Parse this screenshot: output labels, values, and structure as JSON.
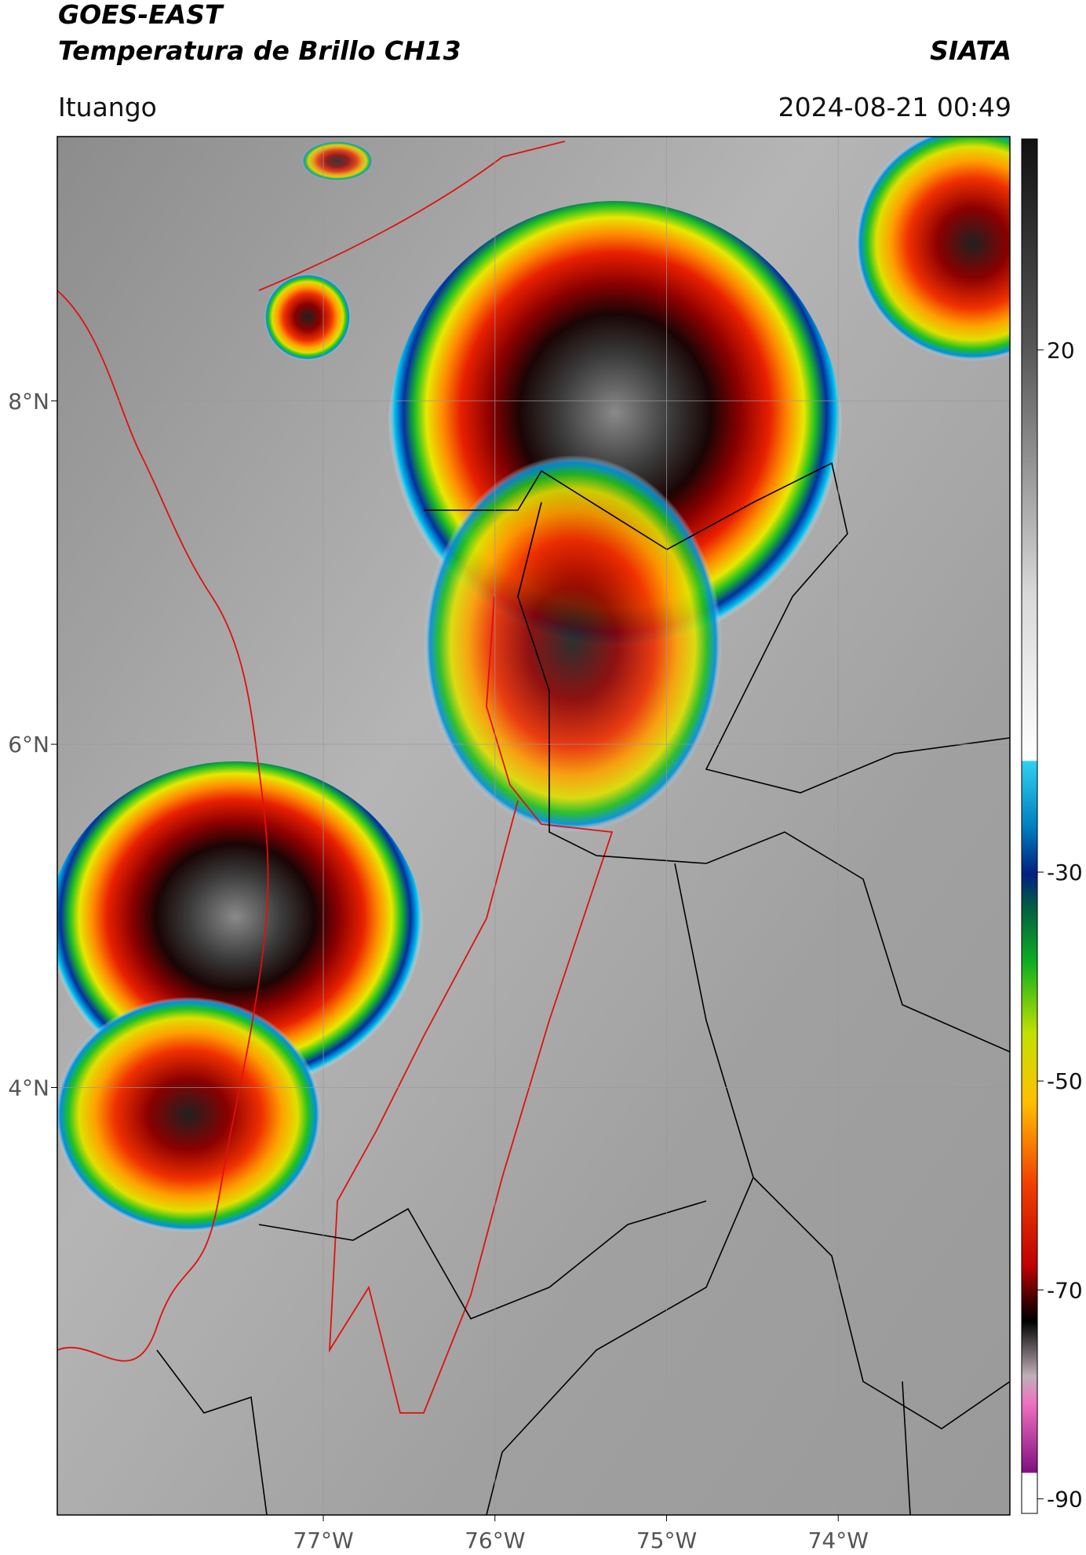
{
  "header": {
    "title": "GOES-EAST",
    "subtitle": "Temperatura de Brillo CH13",
    "brand": "SIATA",
    "location": "Ituango",
    "datetime": "2024-08-21 00:49"
  },
  "chart_data": {
    "type": "map",
    "xlim": [
      -78.55,
      -73.0
    ],
    "ylim": [
      1.51,
      9.54
    ],
    "xticks": [
      {
        "value": -77,
        "label": "77°W"
      },
      {
        "value": -76,
        "label": "76°W"
      },
      {
        "value": -75,
        "label": "75°W"
      },
      {
        "value": -74,
        "label": "74°W"
      }
    ],
    "yticks": [
      {
        "value": 8,
        "label": "8°N"
      },
      {
        "value": 6,
        "label": "6°N"
      },
      {
        "value": 4,
        "label": "4°N"
      }
    ],
    "grid": true,
    "colorbar": {
      "lim": [
        -91.4,
        40.2
      ],
      "ticks": [
        20,
        -30,
        -50,
        -70,
        -90
      ]
    }
  }
}
